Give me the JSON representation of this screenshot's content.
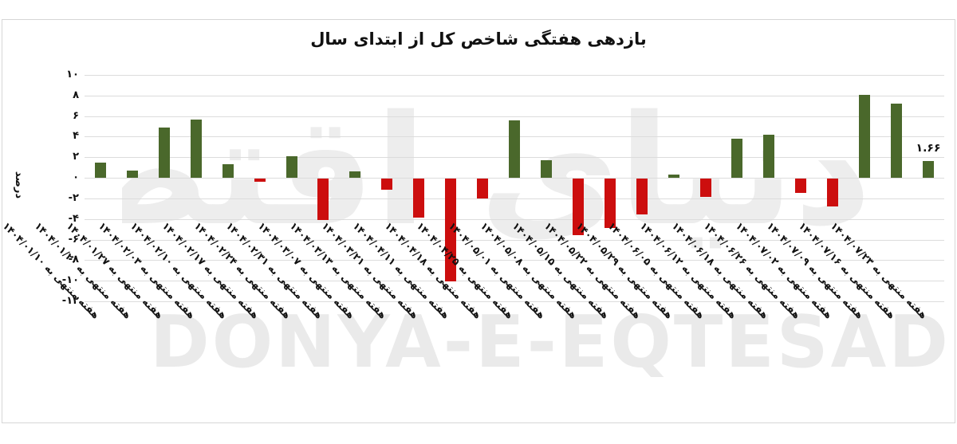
{
  "chart_data": {
    "type": "bar",
    "title": "بازدهی هفتگی شاخص کل از ابتدای سال",
    "xlabel": "",
    "ylabel": "درصد",
    "ylim": [
      -12,
      10
    ],
    "grid": true,
    "legend": "none",
    "colors": {
      "positive": "#4a682b",
      "negative": "#cc0e0e",
      "gridline": "#dcdcdc"
    },
    "yticks": [
      {
        "value": 10,
        "label": "۱۰"
      },
      {
        "value": 8,
        "label": "۸"
      },
      {
        "value": 6,
        "label": "۶"
      },
      {
        "value": 4,
        "label": "۴"
      },
      {
        "value": 2,
        "label": "۲"
      },
      {
        "value": 0,
        "label": "۰"
      },
      {
        "value": -2,
        "label": "-۲"
      },
      {
        "value": -4,
        "label": "-۴"
      },
      {
        "value": -6,
        "label": "-۶"
      },
      {
        "value": -8,
        "label": "-۸"
      },
      {
        "value": -10,
        "label": "-۱۰"
      },
      {
        "value": -12,
        "label": "-۱۲"
      }
    ],
    "categories": [
      "هفته منتهی به ۱۴۰۴/۰۱/۱۰",
      "هفته منتهی به ۱۴۰۴/۰۱/۲۰",
      "هفته منتهی به ۱۴۰۴/۰۱/۲۷",
      "هفته منتهی به ۱۴۰۴/۰۲/۰۳",
      "هفته منتهی به ۱۴۰۴/۰۲/۱۰",
      "هفته منتهی به ۱۴۰۴/۰۲/۱۷",
      "هفته منتهی به ۱۴۰۴/۰۲/۲۴",
      "هفته منتهی به ۱۴۰۴/۰۲/۳۱",
      "هفته منتهی به ۱۴۰۴/۰۳/۰۷",
      "هفته منتهی به ۱۴۰۴/۰۳/۱۳",
      "هفته منتهی به ۱۴۰۴/۰۳/۲۱",
      "هفته منتهی به ۱۴۰۴/۰۴/۱۱",
      "هفته منتهی به ۱۴۰۴/۰۴/۱۸",
      "هفته منتهی به ۱۴۰۴/۰۴/۲۵",
      "هفته منتهی به ۱۴۰۴/۰۵/۰۱",
      "هفته منتهی به ۱۴۰۴/۰۵/۰۸",
      "هفته منتهی به ۱۴۰۴/۰۵/۱۵",
      "هفته منتهی به ۱۴۰۴/۰۵/۲۲",
      "هفته منتهی به ۱۴۰۴/۰۵/۲۹",
      "هفته منتهی به ۱۴۰۴/۰۶/۰۵",
      "هفته منتهی به ۱۴۰۴/۰۶/۱۲",
      "هفته منتهی به ۱۴۰۴/۰۶/۱۸",
      "هفته منتهی به ۱۴۰۴/۰۶/۲۶",
      "هفته منتهی به ۱۴۰۴/۰۷/۰۲",
      "هفته منتهی به ۱۴۰۴/۰۷/۰۹",
      "هفته منتهی به ۱۴۰۴/۰۷/۱۶",
      "هفته منتهی به ۱۴۰۴/۰۷/۲۳"
    ],
    "values": [
      1.5,
      0.7,
      4.9,
      5.7,
      1.3,
      -0.3,
      2.1,
      -4.0,
      0.6,
      -1.1,
      -3.8,
      -10.0,
      -1.9,
      5.6,
      1.7,
      -5.5,
      -4.8,
      -3.5,
      0.3,
      -1.8,
      3.8,
      4.2,
      -1.4,
      -2.7,
      8.1,
      7.2,
      1.66
    ],
    "annotations": [
      {
        "index": 26,
        "text": "۱.۶۶",
        "value": 1.66
      }
    ],
    "watermark": {
      "persian": "دنیای اقتصاد",
      "latin": "DONYA-E-EQTESAD"
    }
  }
}
